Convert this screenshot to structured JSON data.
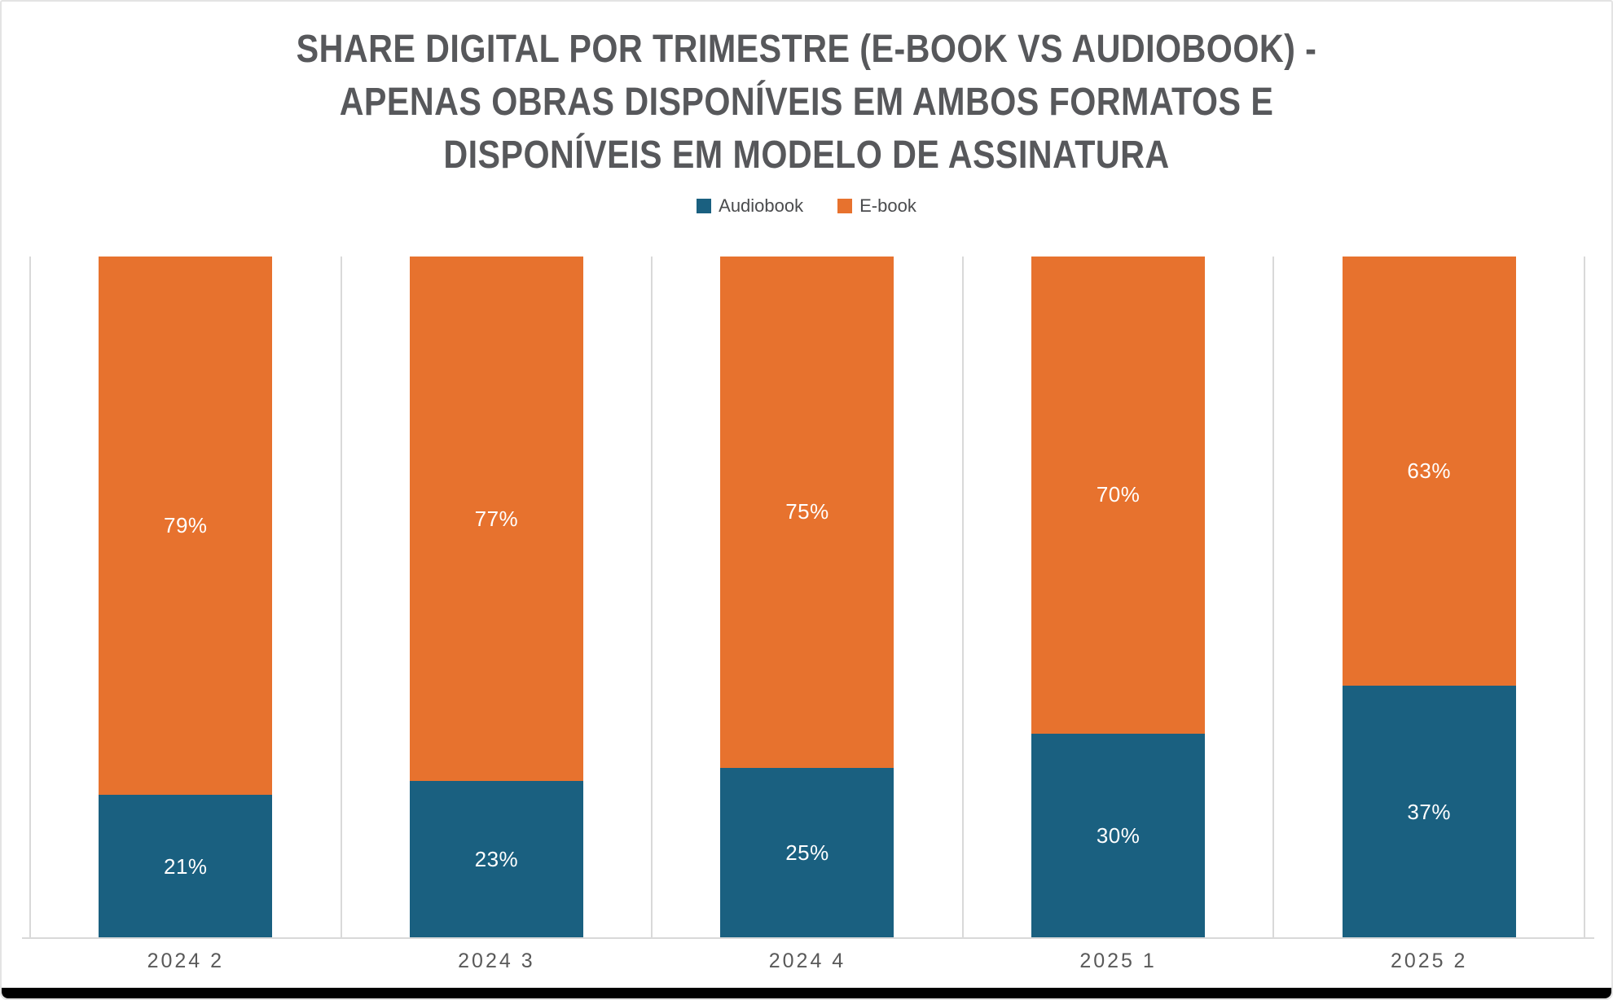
{
  "chart_data": {
    "type": "bar",
    "variant": "stacked-100-percent-column",
    "title": "SHARE DIGITAL POR TRIMESTRE (E-BOOK VS AUDIOBOOK) - APENAS OBRAS DISPONÍVEIS EM AMBOS FORMATOS E DISPONÍVEIS EM MODELO DE ASSINATURA",
    "title_lines": [
      "SHARE DIGITAL POR TRIMESTRE (E-BOOK VS AUDIOBOOK) -",
      "APENAS OBRAS DISPONÍVEIS EM AMBOS FORMATOS E",
      "DISPONÍVEIS EM MODELO DE ASSINATURA"
    ],
    "categories": [
      "2024 2",
      "2024 3",
      "2024 4",
      "2025 1",
      "2025 2"
    ],
    "series": [
      {
        "name": "Audiobook",
        "color": "#1a6080",
        "values": [
          21,
          23,
          25,
          30,
          37
        ]
      },
      {
        "name": "E-book",
        "color": "#e7722e",
        "values": [
          79,
          77,
          75,
          70,
          63
        ]
      }
    ],
    "stack_order_top_to_bottom": [
      "E-book",
      "Audiobook"
    ],
    "value_label_suffix": "%",
    "xlabel": "",
    "ylabel": "",
    "ylim": [
      0,
      100
    ],
    "y_axis_ticks_visible": false,
    "legend_position": "top-center",
    "grid": "vertical-category-separators"
  },
  "style": {
    "title_color": "#57585b",
    "legend_text_color": "#4a4b4d",
    "axis_label_color": "#595959",
    "gridline_color": "#d9d9d9",
    "bar_label_color": "#ffffff",
    "card_border_color": "#e3e3e3",
    "bottom_bar_color": "#000000",
    "background_color": "#ffffff"
  }
}
